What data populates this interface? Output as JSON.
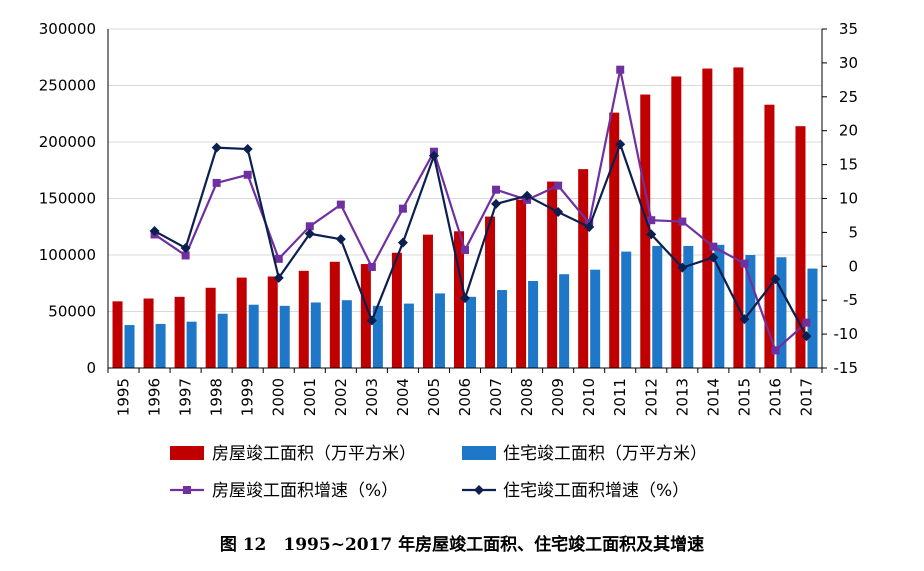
{
  "caption": "图 12　1995~2017 年房屋竣工面积、住宅竣工面积及其增速",
  "chart_data": {
    "type": "bar",
    "categories": [
      "1995",
      "1996",
      "1997",
      "1998",
      "1999",
      "2000",
      "2001",
      "2002",
      "2003",
      "2004",
      "2005",
      "2006",
      "2007",
      "2008",
      "2009",
      "2010",
      "2011",
      "2012",
      "2013",
      "2014",
      "2015",
      "2016",
      "2017"
    ],
    "series": [
      {
        "name": "房屋竣工面积（万平方米）",
        "type": "bar",
        "axis": "left",
        "color": "#c00000",
        "values": [
          59000,
          61500,
          63000,
          71000,
          80000,
          81000,
          86000,
          94000,
          92000,
          102000,
          118000,
          121000,
          134000,
          149000,
          165000,
          176000,
          226000,
          242000,
          258000,
          265000,
          266000,
          233000,
          214000
        ]
      },
      {
        "name": "住宅竣工面积（万平方米）",
        "type": "bar",
        "axis": "left",
        "color": "#1f77c8",
        "values": [
          38000,
          39000,
          41000,
          48000,
          56000,
          55000,
          58000,
          60000,
          55000,
          57000,
          66000,
          63000,
          69000,
          77000,
          83000,
          87000,
          103000,
          108000,
          108000,
          109000,
          100000,
          98000,
          88000
        ]
      },
      {
        "name": "房屋竣工面积增速（%）",
        "type": "line",
        "axis": "right",
        "color": "#7030a0",
        "marker": "square",
        "values": [
          null,
          4.7,
          1.6,
          12.3,
          13.5,
          1.1,
          5.9,
          9.1,
          -0.1,
          8.5,
          16.9,
          2.4,
          11.3,
          9.8,
          11.9,
          6.4,
          29.0,
          6.8,
          6.6,
          2.9,
          0.4,
          -12.4,
          -8.3
        ]
      },
      {
        "name": "住宅竣工面积增速（%）",
        "type": "line",
        "axis": "right",
        "color": "#0d1f4f",
        "marker": "diamond",
        "values": [
          null,
          5.2,
          2.7,
          17.5,
          17.3,
          -1.7,
          4.8,
          4.0,
          -8.0,
          3.5,
          16.3,
          -4.7,
          9.2,
          10.4,
          8.0,
          5.8,
          18.0,
          4.7,
          -0.2,
          1.3,
          -7.8,
          -1.9,
          -10.3
        ]
      }
    ],
    "y_left": {
      "min": 0,
      "max": 300000,
      "ticks": [
        0,
        50000,
        100000,
        150000,
        200000,
        250000,
        300000
      ]
    },
    "y_right": {
      "min": -15,
      "max": 35,
      "ticks": [
        -15,
        -10,
        -5,
        0,
        5,
        10,
        15,
        20,
        25,
        30,
        35
      ]
    },
    "grid": true,
    "legend_position": "bottom"
  }
}
